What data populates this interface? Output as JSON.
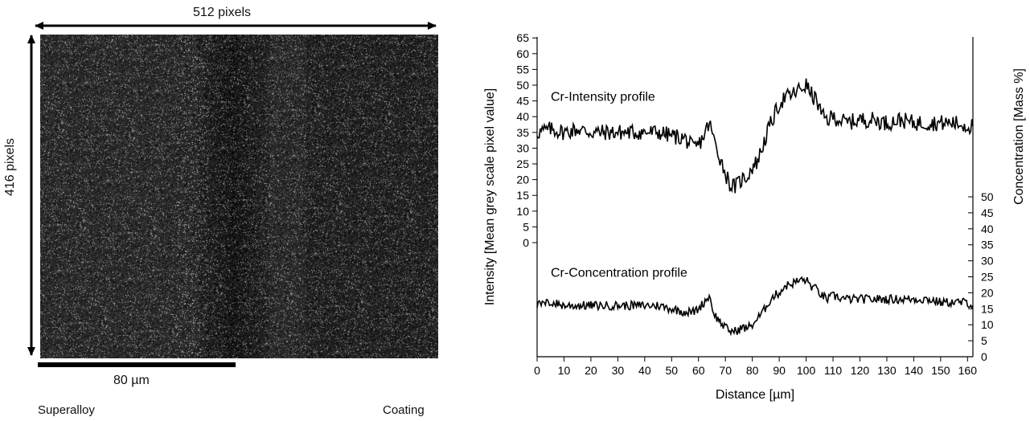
{
  "micrograph": {
    "width_label": "512 pixels",
    "height_label": "416 pixels",
    "scale_label": "80 µm",
    "left_label": "Superalloy",
    "right_label": "Coating",
    "colors": {
      "background": "#262626",
      "arrow": "#000000"
    }
  },
  "chart_data": {
    "type": "line",
    "title": "",
    "xlabel": "Distance [µm]",
    "ylabel": "Intensity [Mean grey scale pixel value]",
    "ylabel_right": "Concentration [Mass %]",
    "xlim": [
      0,
      162
    ],
    "ylim": [
      0,
      65
    ],
    "xticks": [
      "0",
      "10",
      "20",
      "30",
      "40",
      "50",
      "60",
      "70",
      "80",
      "90",
      "100",
      "110",
      "120",
      "130",
      "140",
      "150",
      "160"
    ],
    "yticks": [
      "0",
      "5",
      "10",
      "15",
      "20",
      "25",
      "30",
      "35",
      "40",
      "45",
      "50",
      "55",
      "60",
      "65"
    ],
    "yticks_right": [
      "0",
      "5",
      "10",
      "15",
      "20",
      "25",
      "30",
      "35",
      "40",
      "45",
      "50"
    ],
    "grid": false,
    "series": [
      {
        "name": "Cr-Intensity profile",
        "axis": "left",
        "x": [
          0,
          5,
          10,
          15,
          20,
          25,
          30,
          35,
          40,
          45,
          50,
          55,
          58,
          60,
          62,
          64,
          66,
          68,
          70,
          72,
          74,
          76,
          78,
          80,
          82,
          84,
          86,
          88,
          90,
          92,
          95,
          98,
          100,
          102,
          104,
          106,
          108,
          110,
          115,
          120,
          125,
          130,
          135,
          140,
          145,
          150,
          155,
          160,
          162
        ],
        "y": [
          35,
          36,
          35,
          36,
          35,
          35,
          35,
          35,
          35,
          35,
          34,
          33,
          30,
          31,
          34,
          38,
          32,
          27,
          22,
          18,
          18,
          20,
          21,
          24,
          26,
          31,
          36,
          40,
          44,
          46,
          47,
          49,
          50,
          47,
          45,
          40,
          39,
          40,
          38,
          39,
          39,
          38,
          39,
          38,
          38,
          38,
          38,
          37,
          37
        ]
      },
      {
        "name": "Cr-Concentration profile",
        "axis": "right",
        "x": [
          0,
          5,
          10,
          15,
          20,
          25,
          30,
          35,
          40,
          45,
          50,
          55,
          58,
          60,
          62,
          64,
          66,
          68,
          70,
          72,
          74,
          76,
          78,
          80,
          82,
          84,
          86,
          88,
          90,
          92,
          95,
          98,
          100,
          102,
          104,
          106,
          108,
          110,
          115,
          120,
          125,
          130,
          135,
          140,
          145,
          150,
          155,
          160,
          162
        ],
        "y": [
          16,
          17,
          16,
          16,
          16,
          16,
          16,
          16,
          16,
          16,
          15,
          14,
          14,
          15,
          17,
          19,
          13,
          11,
          9,
          8,
          8,
          9,
          9,
          10,
          12,
          14,
          17,
          19,
          20,
          22,
          23,
          24,
          24,
          22,
          21,
          19,
          18,
          19,
          18,
          18,
          18,
          18,
          18,
          18,
          18,
          17,
          17,
          17,
          16
        ]
      }
    ],
    "annotations": [
      "Cr-Intensity profile",
      "Cr-Concentration profile"
    ]
  }
}
